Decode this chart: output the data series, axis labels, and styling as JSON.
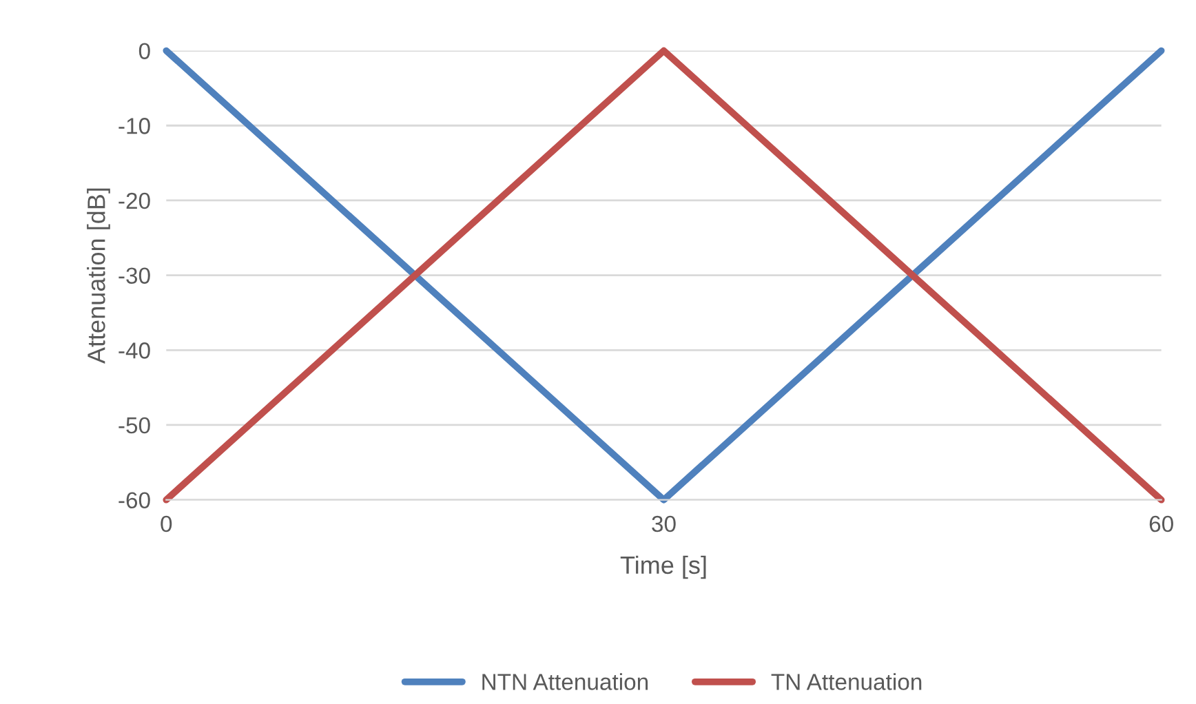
{
  "chart_data": {
    "type": "line",
    "xlabel": "Time [s]",
    "ylabel": "Attenuation [dB]",
    "x": [
      0,
      30,
      60
    ],
    "series": [
      {
        "name": "NTN Attenuation",
        "color": "#4f81bd",
        "values": [
          0,
          -60,
          0
        ]
      },
      {
        "name": "TN Attenuation",
        "color": "#c0504d",
        "values": [
          -60,
          0,
          -60
        ]
      }
    ],
    "xlim": [
      0,
      60
    ],
    "xticks": [
      0,
      30,
      60
    ],
    "ylim": [
      -60,
      0
    ],
    "yticks": [
      -60,
      -50,
      -40,
      -30,
      -20,
      -10,
      0
    ],
    "grid": "y",
    "legend": "bottom",
    "marker": "none",
    "line_style": "solid"
  }
}
